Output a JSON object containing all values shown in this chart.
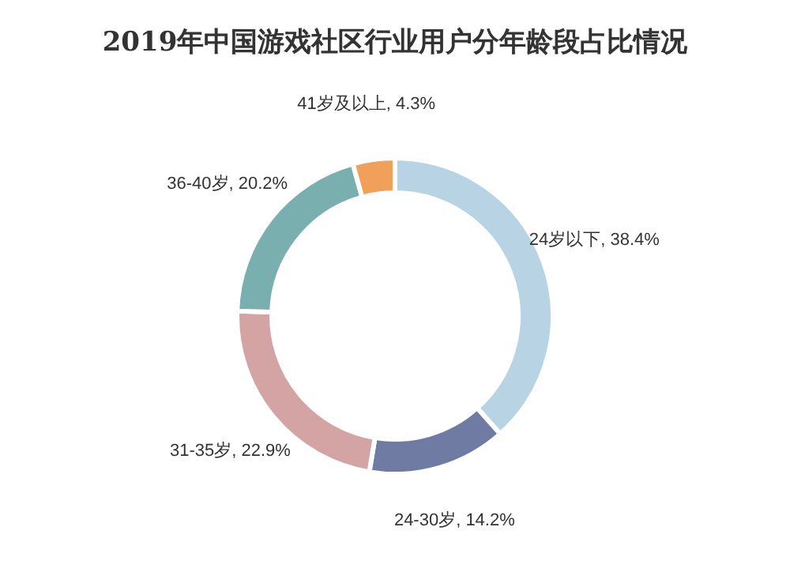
{
  "chart_data": {
    "type": "donut",
    "title": "2019年中国游戏社区行业用户分年龄段占比情况",
    "categories": [
      "24岁以下",
      "24-30岁",
      "31-35岁",
      "36-40岁",
      "41岁及以上"
    ],
    "values": [
      38.4,
      14.2,
      22.9,
      20.2,
      4.3
    ],
    "value_labels": [
      "38.4%",
      "14.2%",
      "22.9%",
      "20.2%",
      "4.3%"
    ],
    "colors": [
      "#b8d4e4",
      "#6f7ba3",
      "#d4a3a3",
      "#7aafaf",
      "#f0a05a"
    ],
    "legend": false
  }
}
